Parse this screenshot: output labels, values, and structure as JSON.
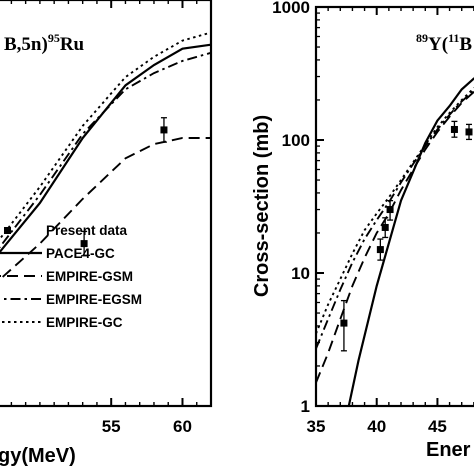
{
  "chart_data": [
    {
      "type": "line",
      "title": {
        "prefix": "B,5n)",
        "sup": "95",
        "suffix": "Ru"
      },
      "xlabel": "gy(MeV)",
      "ylabel": "",
      "xlim": [
        46.5,
        62
      ],
      "ylim": [
        0,
        100
      ],
      "x_ticks": [
        "55",
        "60"
      ],
      "x_tick_values": [
        55,
        60
      ],
      "legend_placement": "lower-left",
      "legend": [
        {
          "label": "Present data",
          "style": "square-marker"
        },
        {
          "label": "PACE4-GC",
          "style": "solid"
        },
        {
          "label": "EMPIRE-GSM",
          "style": "dashed"
        },
        {
          "label": "EMPIRE-EGSM",
          "style": "dash-dot"
        },
        {
          "label": "EMPIRE-GC",
          "style": "dotted"
        }
      ],
      "series": [
        {
          "name": "PACE4-GC",
          "style": "solid",
          "x": [
            46.5,
            50,
            53,
            56,
            58,
            60,
            62
          ],
          "y": [
            35,
            50,
            66,
            79,
            84,
            88,
            89
          ]
        },
        {
          "name": "EMPIRE-GSM",
          "style": "dashed",
          "x": [
            46.5,
            50,
            53,
            56,
            58,
            60,
            62
          ],
          "y": [
            29,
            40,
            51,
            61,
            64.5,
            66,
            66
          ]
        },
        {
          "name": "EMPIRE-EGSM",
          "style": "dash-dot",
          "x": [
            46.5,
            50,
            53,
            56,
            58,
            60,
            62
          ],
          "y": [
            36,
            52,
            67,
            78,
            82,
            85,
            87
          ]
        },
        {
          "name": "EMPIRE-GC",
          "style": "dotted",
          "x": [
            46.5,
            50,
            53,
            56,
            58,
            60,
            62
          ],
          "y": [
            38,
            54,
            69,
            81,
            86,
            90,
            92
          ]
        }
      ],
      "points": [
        {
          "x": 53.1,
          "y": 40,
          "err": 3
        },
        {
          "x": 58.7,
          "y": 68,
          "err": 3
        }
      ]
    },
    {
      "type": "line",
      "title": {
        "sup1": "89",
        "mid": "Y(",
        "sup2": "11",
        "suffix": "B"
      },
      "xlabel": "Ener",
      "ylabel": "Cross-section (mb)",
      "xscale": "linear",
      "yscale": "log",
      "xlim": [
        35,
        49
      ],
      "ylim": [
        1,
        1000
      ],
      "x_ticks": [
        "35",
        "40",
        "45"
      ],
      "x_tick_values": [
        35,
        40,
        45
      ],
      "y_ticks": [
        "1",
        "10",
        "100",
        "1000"
      ],
      "y_tick_values": [
        1,
        10,
        100,
        1000
      ],
      "series": [
        {
          "name": "PACE4-GC",
          "style": "solid",
          "x": [
            37.7,
            38.5,
            40,
            42,
            44,
            45,
            46,
            47,
            48,
            49
          ],
          "y": [
            1,
            2.2,
            8,
            35,
            95,
            140,
            180,
            240,
            290,
            300
          ]
        },
        {
          "name": "EMPIRE-GSM",
          "style": "dashed",
          "x": [
            35,
            36,
            37,
            38,
            39,
            40,
            41,
            42,
            43,
            44,
            45,
            46,
            47,
            48,
            49
          ],
          "y": [
            1.5,
            2.5,
            4.5,
            8,
            13,
            20,
            28,
            42,
            60,
            85,
            115,
            150,
            190,
            230,
            260
          ]
        },
        {
          "name": "EMPIRE-EGSM",
          "style": "dash-dot",
          "x": [
            35,
            36,
            37,
            38,
            39,
            40,
            41,
            42,
            43,
            44,
            45,
            46,
            47,
            48,
            49
          ],
          "y": [
            2.7,
            4.5,
            7.5,
            12,
            18,
            25,
            34,
            48,
            66,
            90,
            120,
            155,
            195,
            235,
            270
          ]
        },
        {
          "name": "EMPIRE-GC",
          "style": "dotted",
          "x": [
            35,
            36,
            37,
            38,
            39,
            40,
            41,
            42,
            43,
            44,
            45,
            46,
            47,
            48,
            49
          ],
          "y": [
            3.5,
            5.8,
            9,
            14,
            21,
            28,
            37,
            50,
            68,
            92,
            125,
            160,
            200,
            245,
            280
          ]
        }
      ],
      "points": [
        {
          "x": 37.3,
          "y": 4.2,
          "lo": 2.6,
          "hi": 6.2
        },
        {
          "x": 40.3,
          "y": 15,
          "lo": 12.5,
          "hi": 18
        },
        {
          "x": 40.7,
          "y": 22,
          "lo": 18.5,
          "hi": 26
        },
        {
          "x": 41.1,
          "y": 30,
          "lo": 25,
          "hi": 35
        },
        {
          "x": 46.4,
          "y": 120,
          "lo": 105,
          "hi": 138
        },
        {
          "x": 47.6,
          "y": 115,
          "lo": 101,
          "hi": 131
        }
      ]
    }
  ]
}
